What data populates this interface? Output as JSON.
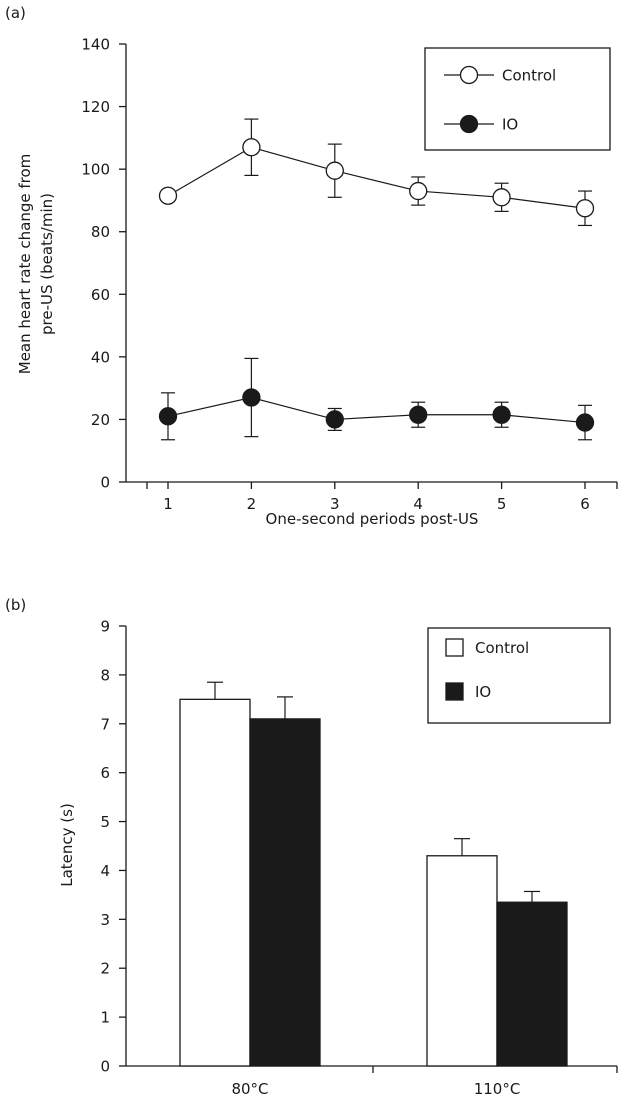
{
  "chart_data": [
    {
      "panel_label": "(a)",
      "type": "line",
      "title": "",
      "xlabel": "One-second periods post-US",
      "ylabel_lines": [
        "Mean heart rate change from",
        "pre-US (beats/min)"
      ],
      "x": [
        1,
        2,
        3,
        4,
        5,
        6
      ],
      "xticks": [
        "1",
        "2",
        "3",
        "4",
        "5",
        "6"
      ],
      "ylim": [
        0,
        140
      ],
      "yticks": [
        "0",
        "20",
        "40",
        "60",
        "80",
        "100",
        "120",
        "140"
      ],
      "grid": false,
      "legend_position": "top-right",
      "series": [
        {
          "name": "Control",
          "marker": "open-circle",
          "color": "#1a1a1a",
          "values": [
            91.5,
            107,
            99.5,
            93,
            91,
            87.5
          ],
          "errors": [
            0,
            9,
            8.5,
            4.5,
            4.5,
            5.5
          ]
        },
        {
          "name": "IO",
          "marker": "filled-circle",
          "color": "#1a1a1a",
          "values": [
            21,
            27,
            20,
            21.5,
            21.5,
            19
          ],
          "errors": [
            7.5,
            12.5,
            3.5,
            4,
            4,
            5.5
          ]
        }
      ]
    },
    {
      "panel_label": "(b)",
      "type": "bar",
      "title": "",
      "xlabel": "",
      "ylabel": "Latency (s)",
      "categories": [
        "80°C",
        "110°C"
      ],
      "ylim": [
        0,
        9
      ],
      "yticks": [
        "0",
        "1",
        "2",
        "3",
        "4",
        "5",
        "6",
        "7",
        "8",
        "9"
      ],
      "grid": false,
      "legend_position": "top-right",
      "series": [
        {
          "name": "Control",
          "fill": "#ffffff",
          "values": [
            7.5,
            4.3
          ],
          "errors": [
            0.35,
            0.35
          ]
        },
        {
          "name": "IO",
          "fill": "#1a1a1a",
          "values": [
            7.1,
            3.35
          ],
          "errors": [
            0.45,
            0.22
          ]
        }
      ]
    }
  ]
}
